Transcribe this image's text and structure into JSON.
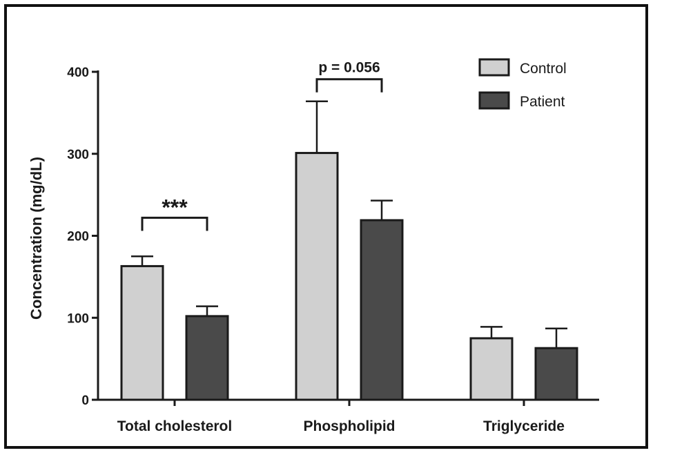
{
  "chart_data": {
    "type": "bar",
    "title": "",
    "xlabel": "",
    "ylabel": "Concentration (mg/dL)",
    "ylim": [
      0,
      400
    ],
    "yticks": [
      0,
      100,
      200,
      300,
      400
    ],
    "categories": [
      "Total cholesterol",
      "Phospholipid",
      "Triglyceride"
    ],
    "series": [
      {
        "name": "Control",
        "values": [
          163,
          301,
          75
        ],
        "errors": [
          12,
          63,
          14
        ],
        "color": "#d0d0d0"
      },
      {
        "name": "Patient",
        "values": [
          102,
          219,
          63
        ],
        "errors": [
          12,
          24,
          24
        ],
        "color": "#4a4a4a"
      }
    ],
    "annotations": [
      {
        "category": "Total cholesterol",
        "text": "***",
        "bracket_y": 222
      },
      {
        "category": "Phospholipid",
        "text": "p = 0.056",
        "bracket_y": 391
      }
    ],
    "legend_position": "top-right",
    "grid": false
  }
}
